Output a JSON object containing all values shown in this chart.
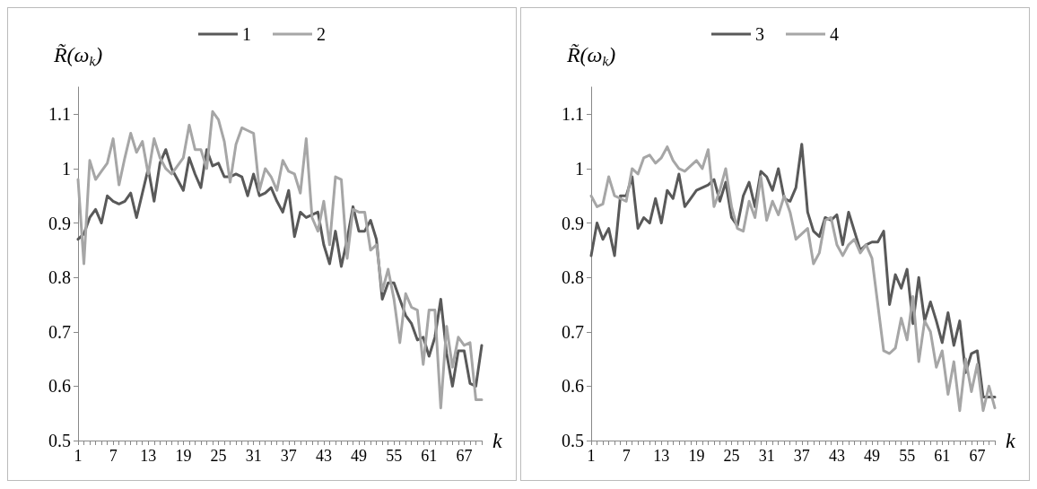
{
  "chart_data": [
    {
      "type": "line",
      "ylabel": "R̃(ω$_{k}$)",
      "xlabel": "k",
      "categories": [
        "1",
        null,
        null,
        null,
        null,
        null,
        "7",
        null,
        null,
        null,
        null,
        null,
        "13",
        null,
        null,
        null,
        null,
        null,
        "19",
        null,
        null,
        null,
        null,
        null,
        "25",
        null,
        null,
        null,
        null,
        null,
        "31",
        null,
        null,
        null,
        null,
        null,
        "37",
        null,
        null,
        null,
        null,
        null,
        "43",
        null,
        null,
        null,
        null,
        null,
        "49",
        null,
        null,
        null,
        null,
        null,
        "55",
        null,
        null,
        null,
        null,
        null,
        "61",
        null,
        null,
        null,
        null,
        null,
        "67",
        null,
        null,
        null
      ],
      "ylim": [
        0.5,
        1.15
      ],
      "yticks": [
        0.5,
        0.6,
        0.7,
        0.8,
        0.9,
        1,
        1.1
      ],
      "grid": false,
      "legend": "top",
      "marker": "none",
      "line_style": "solid",
      "series": [
        {
          "name": "1",
          "color": "#595959",
          "values": [
            0.87,
            0.88,
            0.91,
            0.925,
            0.9,
            0.95,
            0.94,
            0.935,
            0.94,
            0.955,
            0.91,
            0.955,
            1.0,
            0.94,
            1.01,
            1.035,
            1.0,
            0.98,
            0.96,
            1.02,
            0.99,
            0.965,
            1.035,
            1.005,
            1.01,
            0.985,
            0.985,
            0.99,
            0.985,
            0.95,
            0.99,
            0.95,
            0.955,
            0.965,
            0.94,
            0.92,
            0.96,
            0.875,
            0.92,
            0.91,
            0.915,
            0.92,
            0.86,
            0.825,
            0.885,
            0.82,
            0.87,
            0.93,
            0.885,
            0.885,
            0.905,
            0.87,
            0.76,
            0.79,
            0.79,
            0.76,
            0.73,
            0.715,
            0.685,
            0.69,
            0.655,
            0.69,
            0.76,
            0.66,
            0.6,
            0.665,
            0.665,
            0.605,
            0.6,
            0.675
          ]
        },
        {
          "name": "2",
          "color": "#a6a6a6",
          "values": [
            0.98,
            0.825,
            1.015,
            0.98,
            0.995,
            1.01,
            1.055,
            0.97,
            1.02,
            1.065,
            1.03,
            1.05,
            0.99,
            1.055,
            1.02,
            1.0,
            0.99,
            1.005,
            1.02,
            1.08,
            1.035,
            1.035,
            1.0,
            1.105,
            1.09,
            1.05,
            0.975,
            1.045,
            1.075,
            1.07,
            1.065,
            0.96,
            1.0,
            0.985,
            0.96,
            1.015,
            0.995,
            0.99,
            0.955,
            1.055,
            0.91,
            0.885,
            0.94,
            0.86,
            0.985,
            0.98,
            0.835,
            0.925,
            0.92,
            0.92,
            0.85,
            0.86,
            0.775,
            0.815,
            0.76,
            0.68,
            0.77,
            0.745,
            0.74,
            0.64,
            0.74,
            0.74,
            0.56,
            0.71,
            0.635,
            0.69,
            0.675,
            0.68,
            0.575,
            0.575
          ]
        }
      ]
    },
    {
      "type": "line",
      "ylabel": "R̃(ω$_{k}$)",
      "xlabel": "k",
      "categories": [
        "1",
        null,
        null,
        null,
        null,
        null,
        "7",
        null,
        null,
        null,
        null,
        null,
        "13",
        null,
        null,
        null,
        null,
        null,
        "19",
        null,
        null,
        null,
        null,
        null,
        "25",
        null,
        null,
        null,
        null,
        null,
        "31",
        null,
        null,
        null,
        null,
        null,
        "37",
        null,
        null,
        null,
        null,
        null,
        "43",
        null,
        null,
        null,
        null,
        null,
        "49",
        null,
        null,
        null,
        null,
        null,
        "55",
        null,
        null,
        null,
        null,
        null,
        "61",
        null,
        null,
        null,
        null,
        null,
        "67",
        null,
        null,
        null
      ],
      "ylim": [
        0.5,
        1.15
      ],
      "yticks": [
        0.5,
        0.6,
        0.7,
        0.8,
        0.9,
        1,
        1.1
      ],
      "grid": false,
      "legend": "top",
      "marker": "none",
      "line_style": "solid",
      "series": [
        {
          "name": "3",
          "color": "#595959",
          "values": [
            0.84,
            0.9,
            0.87,
            0.89,
            0.84,
            0.95,
            0.95,
            0.985,
            0.89,
            0.91,
            0.9,
            0.945,
            0.9,
            0.96,
            0.945,
            0.99,
            0.93,
            0.945,
            0.96,
            0.965,
            0.97,
            0.98,
            0.94,
            0.975,
            0.91,
            0.895,
            0.95,
            0.975,
            0.93,
            0.995,
            0.985,
            0.96,
            1.0,
            0.945,
            0.94,
            0.965,
            1.045,
            0.92,
            0.885,
            0.875,
            0.91,
            0.905,
            0.915,
            0.86,
            0.92,
            0.885,
            0.85,
            0.86,
            0.865,
            0.865,
            0.885,
            0.75,
            0.805,
            0.78,
            0.815,
            0.715,
            0.8,
            0.72,
            0.755,
            0.72,
            0.68,
            0.735,
            0.675,
            0.72,
            0.625,
            0.66,
            0.665,
            0.58,
            0.58,
            0.58
          ]
        },
        {
          "name": "4",
          "color": "#a6a6a6",
          "values": [
            0.95,
            0.93,
            0.935,
            0.985,
            0.95,
            0.945,
            0.94,
            1.0,
            0.99,
            1.02,
            1.025,
            1.01,
            1.02,
            1.04,
            1.015,
            1.0,
            0.995,
            1.005,
            1.015,
            1.0,
            1.035,
            0.93,
            0.96,
            1.0,
            0.93,
            0.89,
            0.885,
            0.94,
            0.91,
            0.985,
            0.905,
            0.94,
            0.915,
            0.95,
            0.92,
            0.87,
            0.88,
            0.89,
            0.825,
            0.845,
            0.905,
            0.91,
            0.86,
            0.84,
            0.86,
            0.87,
            0.845,
            0.86,
            0.835,
            0.75,
            0.665,
            0.66,
            0.67,
            0.725,
            0.685,
            0.765,
            0.645,
            0.72,
            0.7,
            0.635,
            0.665,
            0.585,
            0.645,
            0.555,
            0.65,
            0.59,
            0.64,
            0.555,
            0.6,
            0.56
          ]
        }
      ]
    }
  ]
}
